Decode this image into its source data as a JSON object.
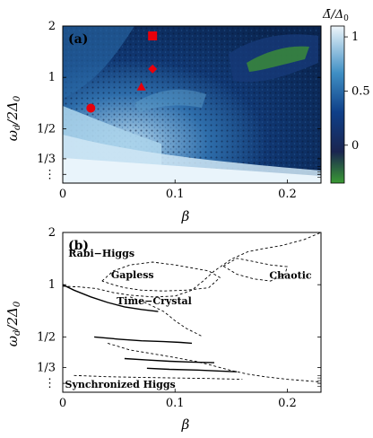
{
  "chart_data": [
    {
      "panel": "(a)",
      "type": "heatmap",
      "xlabel": "β",
      "ylabel": "ω_d/2Δ_0",
      "xlim": [
        0,
        0.23
      ],
      "ylim": [
        0.24,
        2.0
      ],
      "y_scale": "log",
      "x_ticks": [
        {
          "v": 0,
          "label": "0"
        },
        {
          "v": 0.1,
          "label": "0.1"
        },
        {
          "v": 0.2,
          "label": "0.2"
        }
      ],
      "y_ticks": [
        {
          "v": 2,
          "label": "2"
        },
        {
          "v": 1,
          "label": "1"
        },
        {
          "v": 0.5,
          "label": "1/2"
        },
        {
          "v": 0.3333,
          "label": "1/3"
        },
        {
          "v": 0.27,
          "label": "⋮"
        }
      ],
      "colorbar": {
        "label": "Δ̄/Δ_0",
        "min": -0.35,
        "max": 1.1,
        "ticks": [
          {
            "v": 1,
            "label": "1"
          },
          {
            "v": 0.5,
            "label": "0.5"
          },
          {
            "v": 0,
            "label": "0"
          }
        ]
      },
      "markers": [
        {
          "shape": "square",
          "x": 0.08,
          "y": 1.75,
          "color": "#e8000b"
        },
        {
          "shape": "diamond",
          "x": 0.08,
          "y": 1.12,
          "color": "#e8000b"
        },
        {
          "shape": "triangle",
          "x": 0.07,
          "y": 0.88,
          "color": "#e8000b"
        },
        {
          "shape": "circle",
          "x": 0.025,
          "y": 0.66,
          "color": "#e8000b"
        }
      ]
    },
    {
      "panel": "(b)",
      "type": "line",
      "xlabel": "β",
      "ylabel": "ω_d/2Δ_0",
      "xlim": [
        0,
        0.23
      ],
      "ylim": [
        0.24,
        2.0
      ],
      "y_scale": "log",
      "x_ticks": [
        {
          "v": 0,
          "label": "0"
        },
        {
          "v": 0.1,
          "label": "0.1"
        },
        {
          "v": 0.2,
          "label": "0.2"
        }
      ],
      "y_ticks": [
        {
          "v": 2,
          "label": "2"
        },
        {
          "v": 1,
          "label": "1"
        },
        {
          "v": 0.5,
          "label": "1/2"
        },
        {
          "v": 0.3333,
          "label": "1/3"
        },
        {
          "v": 0.27,
          "label": "⋮"
        }
      ],
      "regions": [
        {
          "label": "Rabi−Higgs",
          "x": 0.005,
          "y": 1.45
        },
        {
          "label": "Gapless",
          "x": 0.043,
          "y": 1.09
        },
        {
          "label": "Chaotic",
          "x": 0.184,
          "y": 1.08
        },
        {
          "label": "Time−Crystal",
          "x": 0.048,
          "y": 0.77
        },
        {
          "label": "Synchronized Higgs",
          "x": 0.002,
          "y": 0.255
        }
      ],
      "series": [
        {
          "style": "solid",
          "x": [
            0,
            0.01,
            0.025,
            0.04,
            0.055,
            0.07,
            0.085
          ],
          "y": [
            1.0,
            0.93,
            0.85,
            0.79,
            0.745,
            0.72,
            0.7
          ]
        },
        {
          "style": "solid",
          "x": [
            0.028,
            0.05,
            0.07,
            0.09,
            0.105,
            0.115
          ],
          "y": [
            0.5,
            0.485,
            0.475,
            0.47,
            0.465,
            0.46
          ]
        },
        {
          "style": "solid",
          "x": [
            0.055,
            0.075,
            0.095,
            0.115,
            0.135
          ],
          "y": [
            0.375,
            0.368,
            0.362,
            0.358,
            0.355
          ]
        },
        {
          "style": "solid",
          "x": [
            0.075,
            0.095,
            0.12,
            0.14,
            0.155
          ],
          "y": [
            0.33,
            0.325,
            0.322,
            0.318,
            0.315
          ]
        },
        {
          "style": "dashed",
          "x": [
            0,
            0.015,
            0.03,
            0.045,
            0.06,
            0.08,
            0.1,
            0.115,
            0.125,
            0.135,
            0.15,
            0.165,
            0.18,
            0.195,
            0.215,
            0.23
          ],
          "y": [
            0.98,
            0.97,
            0.95,
            0.9,
            0.87,
            0.85,
            0.86,
            0.93,
            1.05,
            1.2,
            1.4,
            1.55,
            1.62,
            1.68,
            1.82,
            2.0
          ]
        },
        {
          "style": "dashed",
          "x": [
            0.035,
            0.045,
            0.06,
            0.08,
            0.1,
            0.115,
            0.13,
            0.14,
            0.13,
            0.11,
            0.09,
            0.07,
            0.055,
            0.045,
            0.035
          ],
          "y": [
            1.05,
            1.2,
            1.3,
            1.35,
            1.3,
            1.25,
            1.2,
            1.1,
            0.96,
            0.93,
            0.92,
            0.93,
            0.96,
            1.0,
            1.05
          ]
        },
        {
          "style": "dashed",
          "x": [
            0.143,
            0.155,
            0.17,
            0.185,
            0.2,
            0.198,
            0.185,
            0.17,
            0.155,
            0.143
          ],
          "y": [
            1.28,
            1.42,
            1.36,
            1.3,
            1.27,
            1.15,
            1.05,
            1.08,
            1.15,
            1.28
          ]
        },
        {
          "style": "dashed",
          "x": [
            0.06,
            0.075,
            0.09,
            0.1,
            0.11,
            0.12,
            0.125
          ],
          "y": [
            0.85,
            0.78,
            0.7,
            0.62,
            0.56,
            0.52,
            0.5
          ]
        },
        {
          "style": "dashed",
          "x": [
            0.04,
            0.06,
            0.08,
            0.1,
            0.12,
            0.135,
            0.15,
            0.165,
            0.18,
            0.2,
            0.23
          ],
          "y": [
            0.46,
            0.42,
            0.4,
            0.38,
            0.36,
            0.34,
            0.32,
            0.305,
            0.295,
            0.285,
            0.275
          ]
        },
        {
          "style": "dashed",
          "x": [
            0.01,
            0.04,
            0.07,
            0.1,
            0.13,
            0.16
          ],
          "y": [
            0.3,
            0.295,
            0.292,
            0.29,
            0.288,
            0.285
          ]
        }
      ]
    }
  ]
}
